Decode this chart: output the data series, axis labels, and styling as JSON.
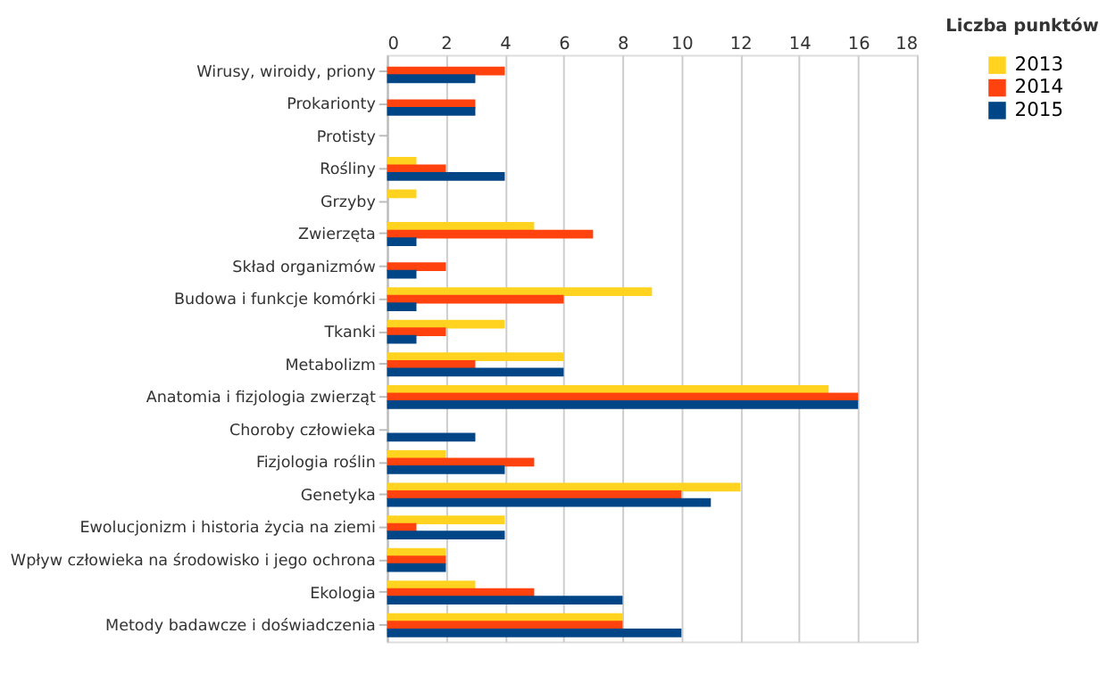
{
  "chart_data": {
    "type": "bar",
    "orientation": "horizontal",
    "xlabel": "Liczba punktów",
    "categories": [
      "Wirusy, wiroidy, priony",
      "Prokarionty",
      "Protisty",
      "Rośliny",
      "Grzyby",
      "Zwierzęta",
      "Skład organizmów",
      "Budowa i funkcje komórki",
      "Tkanki",
      "Metabolizm",
      "Anatomia i fizjologia zwierząt",
      "Choroby człowieka",
      "Fizjologia roślin",
      "Genetyka",
      "Ewolucjonizm i historia życia na ziemi",
      "Wpływ człowieka na środowisko i jego ochrona",
      "Ekologia",
      "Metody badawcze i doświadczenia"
    ],
    "series": [
      {
        "name": "2013",
        "color": "#ffd320",
        "values": [
          0,
          0,
          0,
          1,
          1,
          5,
          0,
          9,
          4,
          6,
          15,
          0,
          2,
          12,
          4,
          2,
          3,
          8
        ]
      },
      {
        "name": "2014",
        "color": "#ff420e",
        "values": [
          4,
          3,
          0,
          2,
          0,
          7,
          2,
          6,
          2,
          3,
          16,
          0,
          5,
          10,
          1,
          2,
          5,
          8
        ]
      },
      {
        "name": "2015",
        "color": "#004586",
        "values": [
          3,
          3,
          0,
          4,
          0,
          1,
          1,
          1,
          1,
          6,
          16,
          3,
          4,
          11,
          4,
          2,
          8,
          10
        ]
      }
    ],
    "xlim": [
      0,
      18
    ],
    "xticks": [
      0,
      2,
      4,
      6,
      8,
      10,
      12,
      14,
      16,
      18
    ],
    "grid": "x",
    "legend": "right"
  }
}
